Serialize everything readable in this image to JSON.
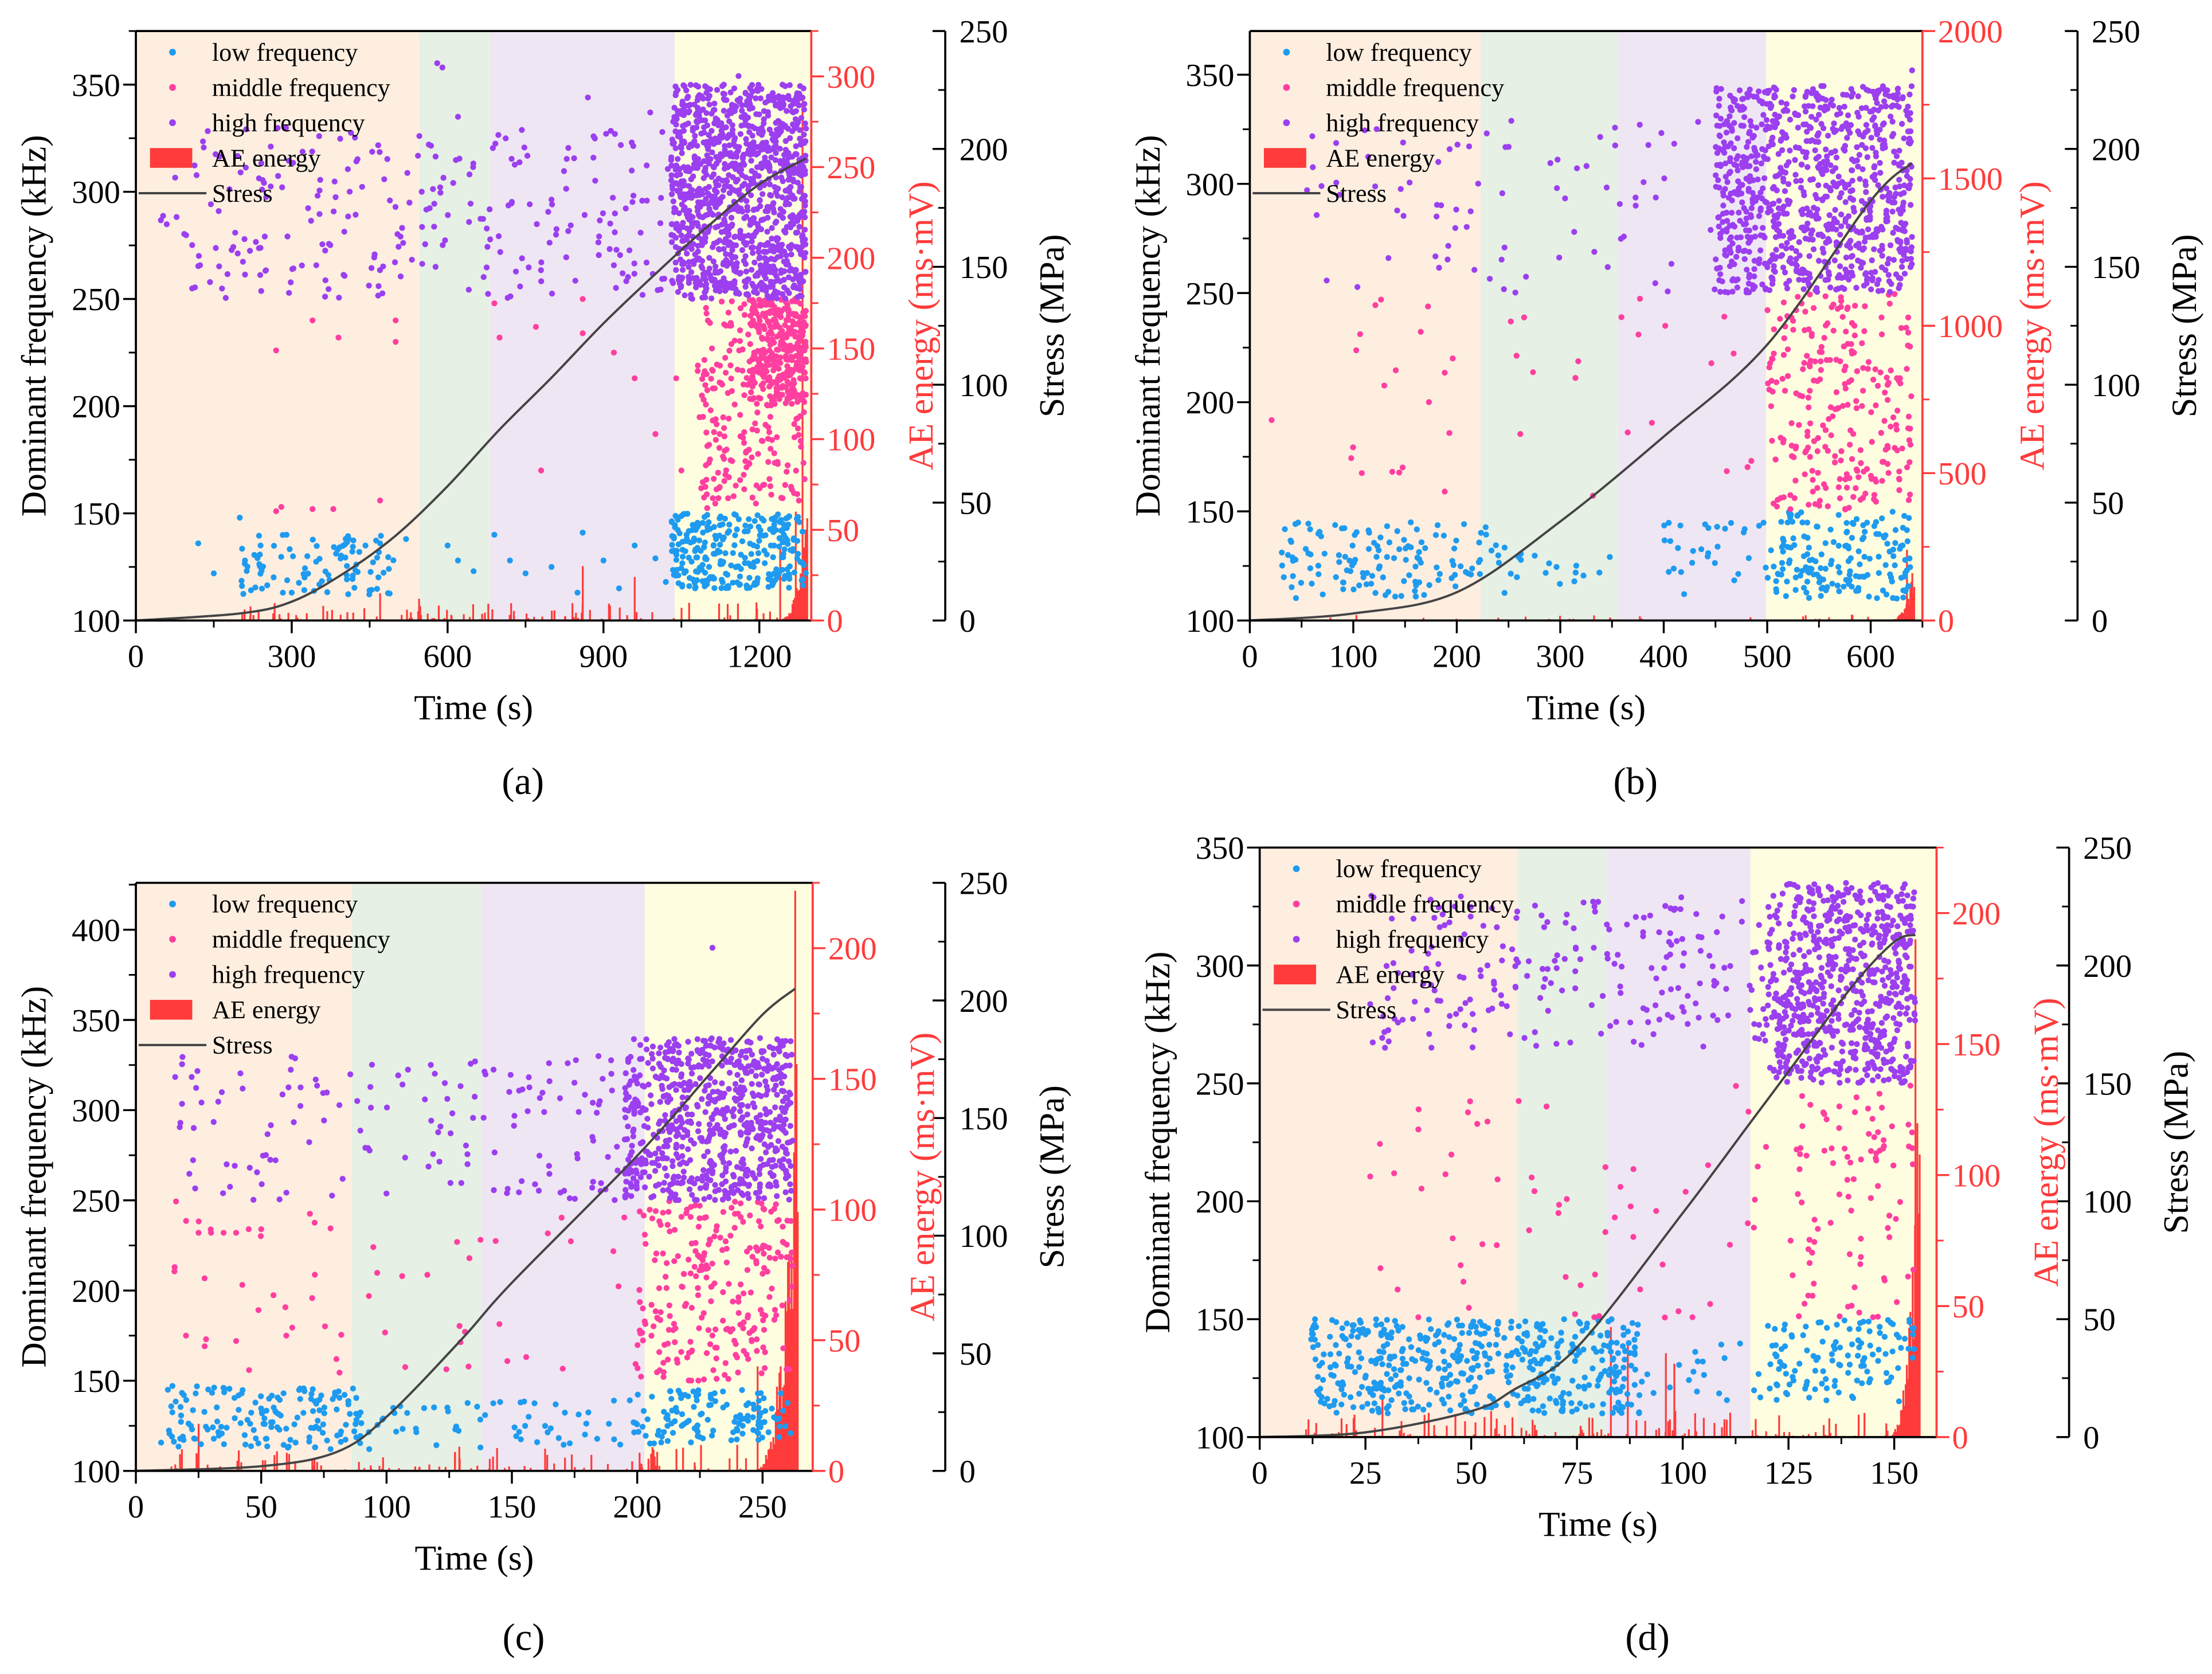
{
  "colors": {
    "low": "#1e9bf0",
    "middle": "#ff3fa0",
    "high": "#9b3ff0",
    "ae": "#ff3b3b",
    "stress": "#444444",
    "stage1": "#fdeee0",
    "stage2": "#e6f0e4",
    "stage3": "#efe6f3",
    "stage4": "#fefddf"
  },
  "legend": [
    "low frequency",
    "middle frequency",
    "high frequency",
    "AE energy",
    "Stress"
  ],
  "chart_data": [
    {
      "id": "a",
      "panel_label": "(a)",
      "letter": "a",
      "type": "scatter",
      "xlabel": "Time (s)",
      "ylabel": "Dominant frequency (kHz)",
      "y2label": "AE energy (ms·mV)",
      "y3label": "Stress (MPa)",
      "xlim": [
        0,
        1300
      ],
      "xticks": [
        0,
        300,
        600,
        900,
        1200
      ],
      "xminor": 150,
      "ylim": [
        100,
        375
      ],
      "yticks": [
        100,
        150,
        200,
        250,
        300,
        350
      ],
      "yminor": 25,
      "y2lim": [
        0,
        325
      ],
      "y2ticks": [
        0,
        50,
        100,
        150,
        200,
        250,
        300
      ],
      "y2minor": 25,
      "y3lim": [
        0,
        250
      ],
      "y3ticks": [
        0,
        50,
        100,
        150,
        200,
        250
      ],
      "y3minor": 25,
      "stages": [
        [
          0,
          546
        ],
        [
          546,
          681
        ],
        [
          681,
          1037
        ],
        [
          1037,
          1300
        ]
      ],
      "stress": {
        "t": [
          0,
          200,
          300,
          400,
          500,
          600,
          700,
          800,
          900,
          1000,
          1100,
          1200,
          1290
        ],
        "s": [
          0,
          3,
          8,
          20,
          36,
          57,
          81,
          103,
          126,
          147,
          167,
          185,
          196
        ]
      },
      "points": {
        "low": [
          [
            120,
            136
          ],
          [
            150,
            122
          ],
          [
            200,
            148
          ],
          [
            210,
            128
          ],
          [
            240,
            135
          ],
          [
            290,
            140
          ],
          [
            300,
            113
          ],
          [
            330,
            130
          ],
          [
            430,
            132
          ],
          [
            470,
            136
          ],
          [
            520,
            138
          ],
          [
            600,
            135
          ],
          [
            620,
            128
          ],
          [
            650,
            123
          ],
          [
            690,
            140
          ],
          [
            720,
            128
          ],
          [
            750,
            122
          ],
          [
            800,
            125
          ],
          [
            860,
            141
          ],
          [
            850,
            113
          ],
          [
            900,
            128
          ],
          [
            930,
            115
          ],
          [
            960,
            135
          ],
          [
            1000,
            129
          ],
          [
            1020,
            118
          ],
          [
            1060,
            140
          ]
        ],
        "middle": [
          [
            270,
            151
          ],
          [
            280,
            153
          ],
          [
            340,
            152
          ],
          [
            380,
            152
          ],
          [
            470,
            156
          ],
          [
            270,
            226
          ],
          [
            340,
            240
          ],
          [
            390,
            232
          ],
          [
            500,
            230
          ],
          [
            500,
            240
          ],
          [
            690,
            248
          ],
          [
            700,
            232
          ],
          [
            770,
            237
          ],
          [
            860,
            234
          ],
          [
            860,
            250
          ],
          [
            920,
            225
          ],
          [
            960,
            213
          ],
          [
            1000,
            187
          ],
          [
            1040,
            213
          ],
          [
            1050,
            170
          ],
          [
            780,
            170
          ],
          [
            1170,
            168
          ]
        ],
        "high": [
          [
            580,
            360
          ],
          [
            590,
            358
          ],
          [
            870,
            344
          ],
          [
            1160,
            354
          ],
          [
            620,
            335
          ],
          [
            990,
            337
          ]
        ]
      },
      "clouds": [
        {
          "series": "low",
          "t": [
            200,
            500
          ],
          "f": [
            112,
            140
          ],
          "n": 90
        },
        {
          "series": "low",
          "t": [
            1030,
            1290
          ],
          "f": [
            115,
            150
          ],
          "n": 280
        },
        {
          "series": "middle",
          "t": [
            1080,
            1290
          ],
          "f": [
            150,
            250
          ],
          "n": 260
        },
        {
          "series": "middle",
          "t": [
            1180,
            1290
          ],
          "f": [
            200,
            250
          ],
          "n": 260
        },
        {
          "series": "high",
          "t": [
            40,
            1030
          ],
          "f": [
            250,
            330
          ],
          "n": 260
        },
        {
          "series": "high",
          "t": [
            1030,
            1290
          ],
          "f": [
            250,
            350
          ],
          "n": 1100
        }
      ],
      "ae": {
        "random": {
          "t": [
            200,
            1240
          ],
          "max": 10,
          "n": 160
        },
        "peaks": [
          [
            470,
            15
          ],
          [
            545,
            12
          ],
          [
            860,
            30
          ],
          [
            960,
            24
          ],
          [
            1240,
            40
          ],
          [
            1270,
            60
          ],
          [
            1283,
            290
          ]
        ],
        "burst": {
          "t": [
            1230,
            1292
          ],
          "max": 60,
          "n": 60
        }
      }
    },
    {
      "id": "b",
      "panel_label": "(b)",
      "letter": "b",
      "type": "scatter",
      "xlabel": "Time (s)",
      "ylabel": "Dominant frequency (kHz)",
      "y2label": "AE energy (ms·mV)",
      "y3label": "Stress (MPa)",
      "xlim": [
        0,
        650
      ],
      "xticks": [
        0,
        100,
        200,
        300,
        400,
        500,
        600
      ],
      "xminor": 50,
      "ylim": [
        100,
        370
      ],
      "yticks": [
        100,
        150,
        200,
        250,
        300,
        350
      ],
      "yminor": 25,
      "y2lim": [
        0,
        2000
      ],
      "y2ticks": [
        0,
        500,
        1000,
        1500,
        2000
      ],
      "y2minor": 250,
      "y3lim": [
        0,
        250
      ],
      "y3ticks": [
        0,
        50,
        100,
        150,
        200,
        250
      ],
      "y3minor": 25,
      "stages": [
        [
          0,
          223
        ],
        [
          223,
          356
        ],
        [
          356,
          499
        ],
        [
          499,
          650
        ]
      ],
      "stress": {
        "t": [
          0,
          100,
          200,
          300,
          400,
          500,
          600,
          640
        ],
        "s": [
          0,
          3,
          12,
          42,
          78,
          117,
          178,
          194
        ]
      },
      "points": {
        "low": [],
        "middle": [],
        "high": [
          [
            640,
            352
          ]
        ]
      },
      "clouds": [
        {
          "series": "low",
          "t": [
            30,
            230
          ],
          "f": [
            110,
            145
          ],
          "n": 130
        },
        {
          "series": "low",
          "t": [
            230,
            350
          ],
          "f": [
            112,
            135
          ],
          "n": 22
        },
        {
          "series": "low",
          "t": [
            400,
            500
          ],
          "f": [
            112,
            145
          ],
          "n": 30
        },
        {
          "series": "low",
          "t": [
            500,
            640
          ],
          "f": [
            110,
            150
          ],
          "n": 170
        },
        {
          "series": "middle",
          "t": [
            20,
            500
          ],
          "f": [
            150,
            250
          ],
          "n": 40
        },
        {
          "series": "middle",
          "t": [
            500,
            640
          ],
          "f": [
            150,
            250
          ],
          "n": 260
        },
        {
          "series": "high",
          "t": [
            50,
            500
          ],
          "f": [
            250,
            330
          ],
          "n": 90
        },
        {
          "series": "high",
          "t": [
            450,
            640
          ],
          "f": [
            250,
            345
          ],
          "n": 900
        }
      ],
      "ae": {
        "random": {
          "t": [
            20,
            620
          ],
          "max": 20,
          "n": 60
        },
        "peaks": [
          [
            635,
            240
          ]
        ],
        "burst": {
          "t": [
            615,
            642
          ],
          "max": 200,
          "n": 30
        }
      }
    },
    {
      "id": "c",
      "panel_label": "(c)",
      "letter": "c",
      "type": "scatter",
      "xlabel": "Time (s)",
      "ylabel": "Dominant frequency (kHz)",
      "y2label": "AE energy (ms·mV)",
      "y3label": "Stress (MPa)",
      "xlim": [
        0,
        270
      ],
      "xticks": [
        0,
        50,
        100,
        150,
        200,
        250
      ],
      "xminor": 25,
      "ylim": [
        100,
        426
      ],
      "yticks": [
        100,
        150,
        200,
        250,
        300,
        350,
        400
      ],
      "yminor": 25,
      "y2lim": [
        0,
        225
      ],
      "y2ticks": [
        0,
        50,
        100,
        150,
        200
      ],
      "y2minor": 25,
      "y3lim": [
        0,
        250
      ],
      "y3ticks": [
        0,
        50,
        100,
        150,
        200,
        250
      ],
      "y3minor": 25,
      "stages": [
        [
          0,
          86
        ],
        [
          86,
          138
        ],
        [
          138,
          203
        ],
        [
          203,
          270
        ]
      ],
      "stress": {
        "t": [
          0,
          50,
          80,
          100,
          130,
          150,
          200,
          230,
          250,
          263
        ],
        "s": [
          0,
          2,
          8,
          23,
          56,
          80,
          134,
          170,
          194,
          205
        ]
      },
      "points": {
        "low": [],
        "middle": [
          [
            25,
            232
          ],
          [
            30,
            232
          ],
          [
            35,
            232
          ],
          [
            40,
            232
          ],
          [
            45,
            234
          ],
          [
            50,
            234
          ],
          [
            20,
            175
          ],
          [
            28,
            173
          ],
          [
            40,
            172
          ],
          [
            60,
            175
          ],
          [
            80,
            162
          ]
        ],
        "high": [
          [
            230,
            390
          ]
        ]
      },
      "clouds": [
        {
          "series": "low",
          "t": [
            10,
            90
          ],
          "f": [
            112,
            148
          ],
          "n": 160
        },
        {
          "series": "low",
          "t": [
            90,
            200
          ],
          "f": [
            112,
            140
          ],
          "n": 60
        },
        {
          "series": "low",
          "t": [
            200,
            262
          ],
          "f": [
            115,
            145
          ],
          "n": 120
        },
        {
          "series": "middle",
          "t": [
            15,
            200
          ],
          "f": [
            150,
            250
          ],
          "n": 50
        },
        {
          "series": "middle",
          "t": [
            200,
            262
          ],
          "f": [
            150,
            250
          ],
          "n": 250
        },
        {
          "series": "high",
          "t": [
            15,
            200
          ],
          "f": [
            250,
            330
          ],
          "n": 160
        },
        {
          "series": "high",
          "t": [
            195,
            262
          ],
          "f": [
            250,
            340
          ],
          "n": 700
        }
      ],
      "ae": {
        "random": {
          "t": [
            10,
            245
          ],
          "max": 10,
          "n": 150
        },
        "peaks": [
          [
            25,
            18
          ],
          [
            248,
            40
          ],
          [
            263,
            222
          ]
        ],
        "burst": {
          "t": [
            245,
            264
          ],
          "max": 180,
          "n": 40
        }
      }
    },
    {
      "id": "d",
      "panel_label": "(d)",
      "letter": "d",
      "type": "scatter",
      "xlabel": "Time (s)",
      "ylabel": "Dominant frequency (kHz)",
      "y2label": "AE energy (ms·mV)",
      "y3label": "Stress (MPa)",
      "xlim": [
        0,
        160
      ],
      "xticks": [
        0,
        25,
        50,
        75,
        100,
        125,
        150
      ],
      "xminor": 12.5,
      "ylim": [
        100,
        350
      ],
      "yticks": [
        100,
        150,
        200,
        250,
        300,
        350
      ],
      "yminor": 25,
      "y2lim": [
        0,
        225
      ],
      "y2ticks": [
        0,
        50,
        100,
        150,
        200
      ],
      "y2minor": 25,
      "y3lim": [
        0,
        250
      ],
      "y3ticks": [
        0,
        50,
        100,
        150,
        200,
        250
      ],
      "y3minor": 25,
      "stages": [
        [
          0,
          61
        ],
        [
          61,
          82
        ],
        [
          82,
          116
        ],
        [
          116,
          160
        ]
      ],
      "stress": {
        "t": [
          0,
          25,
          50,
          60,
          75,
          100,
          115,
          125,
          140,
          150,
          155
        ],
        "s": [
          0,
          2,
          11,
          20,
          38,
          95,
          131,
          155,
          191,
          210,
          213
        ]
      },
      "points": {
        "low": [],
        "middle": [],
        "high": [
          [
            80,
            327
          ]
        ]
      },
      "clouds": [
        {
          "series": "low",
          "t": [
            12,
            90
          ],
          "f": [
            110,
            150
          ],
          "n": 500
        },
        {
          "series": "low",
          "t": [
            90,
            120
          ],
          "f": [
            115,
            140
          ],
          "n": 20
        },
        {
          "series": "low",
          "t": [
            120,
            155
          ],
          "f": [
            115,
            150
          ],
          "n": 120
        },
        {
          "series": "middle",
          "t": [
            25,
            120
          ],
          "f": [
            150,
            250
          ],
          "n": 60
        },
        {
          "series": "middle",
          "t": [
            125,
            155
          ],
          "f": [
            150,
            250
          ],
          "n": 90
        },
        {
          "series": "high",
          "t": [
            25,
            120
          ],
          "f": [
            265,
            330
          ],
          "n": 220
        },
        {
          "series": "high",
          "t": [
            120,
            155
          ],
          "f": [
            250,
            335
          ],
          "n": 700
        }
      ],
      "ae": {
        "random": {
          "t": [
            10,
            150
          ],
          "max": 10,
          "n": 170
        },
        "peaks": [
          [
            29,
            15
          ],
          [
            83,
            42
          ],
          [
            87,
            36
          ],
          [
            96,
            32
          ],
          [
            98,
            28
          ],
          [
            155,
            190
          ]
        ],
        "burst": {
          "t": [
            148,
            156
          ],
          "max": 150,
          "n": 30
        }
      }
    }
  ]
}
